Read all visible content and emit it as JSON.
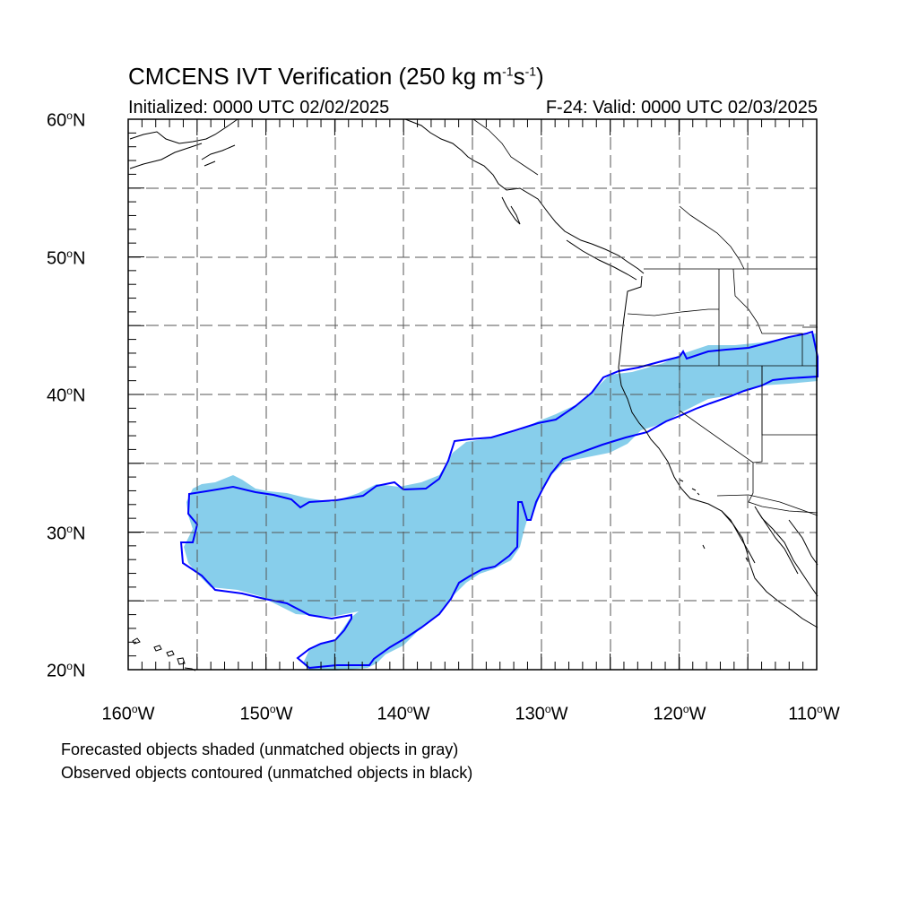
{
  "title": {
    "prefix": "CMCENS IVT Verification (250 kg m",
    "m_exp": "-1",
    "s": "s",
    "s_exp": "-1",
    "suffix": ")"
  },
  "init_text": "Initialized: 0000 UTC 02/02/2025",
  "valid_text": "F-24: Valid: 0000 UTC 02/03/2025",
  "lat_labels": [
    {
      "value": "60",
      "unit": "N"
    },
    {
      "value": "50",
      "unit": "N"
    },
    {
      "value": "40",
      "unit": "N"
    },
    {
      "value": "30",
      "unit": "N"
    },
    {
      "value": "20",
      "unit": "N"
    }
  ],
  "lon_labels": [
    {
      "value": "160",
      "unit": "W"
    },
    {
      "value": "150",
      "unit": "W"
    },
    {
      "value": "140",
      "unit": "W"
    },
    {
      "value": "130",
      "unit": "W"
    },
    {
      "value": "120",
      "unit": "W"
    },
    {
      "value": "110",
      "unit": "W"
    }
  ],
  "footnotes": [
    "Forecasted objects shaded (unmatched objects in gray)",
    "Observed objects contoured (unmatched objects in black)"
  ],
  "map": {
    "lon_range": [
      -160,
      -110
    ],
    "lat_range": [
      20,
      60
    ],
    "grid_dashed": true,
    "forecast_object_color": "#87ceeb",
    "observed_contour_color": "#0000ff",
    "coastline_color": "#000000"
  }
}
